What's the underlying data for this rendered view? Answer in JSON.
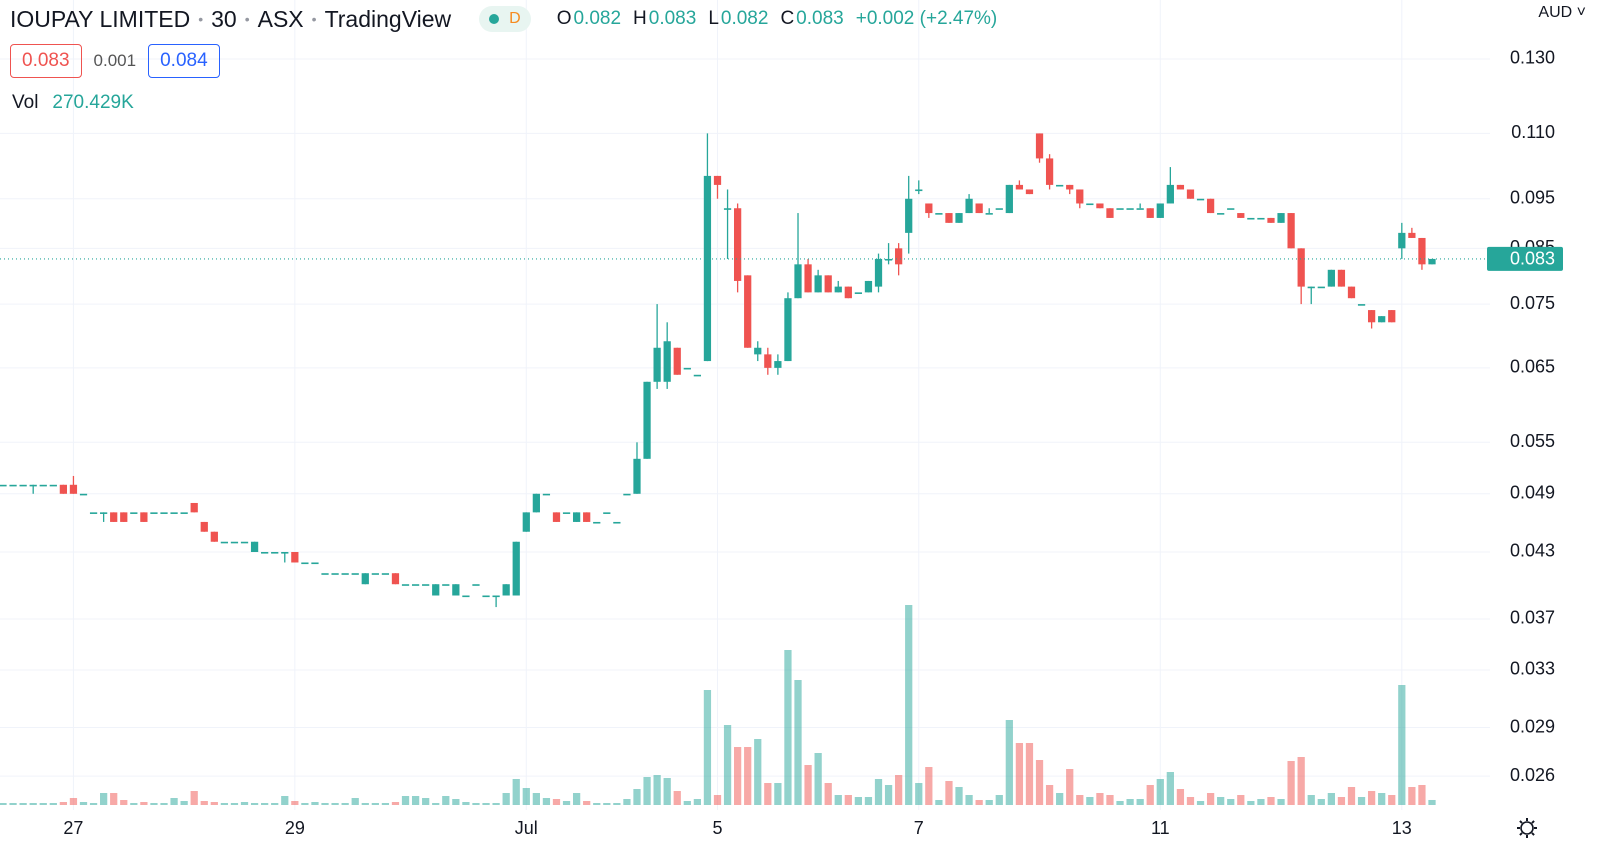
{
  "header": {
    "symbol": "IOUPAY LIMITED",
    "interval": "30",
    "exchange": "ASX",
    "source": "TradingView",
    "status": "D",
    "ohlc": [
      {
        "key": "O",
        "value": "0.082"
      },
      {
        "key": "H",
        "value": "0.083"
      },
      {
        "key": "L",
        "value": "0.082"
      },
      {
        "key": "C",
        "value": "0.083"
      }
    ],
    "change": "+0.002 (+2.47%)",
    "bid": "0.083",
    "spread": "0.001",
    "ask": "0.084",
    "volume_label": "Vol",
    "volume_value": "270.429K",
    "currency": "AUD"
  },
  "chart_data": {
    "type": "candlestick",
    "log_scale": true,
    "grid": true,
    "up_color": "#26a69a",
    "down_color": "#ef5350",
    "ylim": [
      0.0241,
      0.1484
    ],
    "yticks": [
      {
        "value": 0.13,
        "label": "0.130"
      },
      {
        "value": 0.11,
        "label": "0.110"
      },
      0.095,
      0.085,
      0.075,
      0.065,
      0.055,
      0.049,
      0.043,
      0.037,
      0.033,
      0.029,
      0.026
    ],
    "last_price": 0.083,
    "volume_lim": [
      0,
      16200000
    ],
    "categories": [
      null,
      null,
      null,
      null,
      null,
      null,
      null,
      "27",
      null,
      null,
      null,
      null,
      null,
      null,
      null,
      null,
      null,
      null,
      null,
      null,
      null,
      null,
      null,
      null,
      null,
      null,
      null,
      null,
      null,
      "29",
      null,
      null,
      null,
      null,
      null,
      null,
      null,
      null,
      null,
      null,
      null,
      null,
      null,
      null,
      null,
      null,
      null,
      null,
      null,
      null,
      null,
      null,
      "Jul",
      null,
      null,
      null,
      null,
      null,
      null,
      null,
      null,
      null,
      null,
      null,
      null,
      null,
      null,
      null,
      null,
      null,
      null,
      "5",
      null,
      null,
      null,
      null,
      null,
      null,
      null,
      null,
      null,
      null,
      null,
      null,
      null,
      null,
      null,
      null,
      null,
      null,
      null,
      "7",
      null,
      null,
      null,
      null,
      null,
      null,
      null,
      null,
      null,
      null,
      null,
      null,
      null,
      null,
      null,
      null,
      null,
      null,
      null,
      null,
      null,
      null,
      null,
      "11",
      null,
      null,
      null,
      null,
      null,
      null,
      null,
      null,
      null,
      null,
      null,
      null,
      null,
      null,
      null,
      null,
      null,
      null,
      null,
      null,
      null,
      null,
      null,
      "13",
      null,
      null,
      null
    ],
    "open": [
      0.05,
      0.05,
      0.05,
      0.05,
      0.05,
      0.05,
      0.05,
      0.05,
      0.049,
      0.047,
      0.047,
      0.047,
      0.047,
      0.047,
      0.047,
      0.047,
      0.047,
      0.047,
      0.047,
      0.048,
      0.046,
      0.045,
      0.044,
      0.044,
      0.044,
      0.043,
      0.043,
      0.043,
      0.043,
      0.043,
      0.042,
      0.042,
      0.041,
      0.041,
      0.041,
      0.041,
      0.04,
      0.041,
      0.041,
      0.041,
      0.04,
      0.04,
      0.04,
      0.039,
      0.04,
      0.039,
      0.039,
      0.04,
      0.039,
      0.039,
      0.039,
      0.039,
      0.045,
      0.047,
      0.049,
      0.047,
      0.047,
      0.046,
      0.047,
      0.046,
      0.047,
      0.046,
      0.049,
      0.049,
      0.053,
      0.063,
      0.063,
      0.068,
      0.065,
      0.064,
      0.066,
      0.1,
      0.093,
      0.093,
      0.08,
      0.067,
      0.067,
      0.065,
      0.066,
      0.076,
      0.082,
      0.077,
      0.08,
      0.077,
      0.078,
      0.077,
      0.077,
      0.078,
      0.083,
      0.085,
      0.088,
      0.097,
      0.094,
      0.092,
      0.092,
      0.09,
      0.092,
      0.094,
      0.092,
      0.093,
      0.092,
      0.098,
      0.097,
      0.11,
      0.104,
      0.098,
      0.098,
      0.097,
      0.094,
      0.094,
      0.093,
      0.093,
      0.093,
      0.093,
      0.093,
      0.091,
      0.094,
      0.098,
      0.097,
      0.095,
      0.095,
      0.092,
      0.093,
      0.092,
      0.091,
      0.091,
      0.091,
      0.09,
      0.092,
      0.085,
      0.078,
      0.078,
      0.078,
      0.081,
      0.078,
      0.075,
      0.074,
      0.072,
      0.074,
      0.085,
      0.088,
      0.087,
      0.082
    ],
    "high": [
      0.05,
      0.05,
      0.05,
      0.05,
      0.05,
      0.05,
      0.05,
      0.051,
      0.049,
      0.047,
      0.047,
      0.047,
      0.047,
      0.047,
      0.047,
      0.047,
      0.047,
      0.047,
      0.047,
      0.048,
      0.046,
      0.045,
      0.044,
      0.044,
      0.044,
      0.044,
      0.043,
      0.043,
      0.043,
      0.043,
      0.042,
      0.042,
      0.041,
      0.041,
      0.041,
      0.041,
      0.041,
      0.041,
      0.041,
      0.041,
      0.04,
      0.04,
      0.04,
      0.04,
      0.04,
      0.04,
      0.039,
      0.04,
      0.039,
      0.039,
      0.04,
      0.044,
      0.047,
      0.049,
      0.049,
      0.047,
      0.047,
      0.047,
      0.047,
      0.046,
      0.047,
      0.046,
      0.049,
      0.055,
      0.063,
      0.075,
      0.072,
      0.068,
      0.065,
      0.064,
      0.11,
      0.1,
      0.097,
      0.094,
      0.08,
      0.069,
      0.068,
      0.067,
      0.077,
      0.092,
      0.083,
      0.081,
      0.08,
      0.079,
      0.078,
      0.077,
      0.079,
      0.084,
      0.086,
      0.086,
      0.1,
      0.099,
      0.094,
      0.092,
      0.092,
      0.092,
      0.096,
      0.094,
      0.093,
      0.093,
      0.098,
      0.099,
      0.097,
      0.11,
      0.105,
      0.098,
      0.098,
      0.097,
      0.094,
      0.094,
      0.093,
      0.093,
      0.093,
      0.094,
      0.093,
      0.094,
      0.102,
      0.098,
      0.097,
      0.095,
      0.095,
      0.092,
      0.093,
      0.092,
      0.091,
      0.091,
      0.091,
      0.092,
      0.092,
      0.085,
      0.078,
      0.078,
      0.081,
      0.081,
      0.078,
      0.075,
      0.074,
      0.073,
      0.074,
      0.09,
      0.089,
      0.087,
      0.083
    ],
    "low": [
      0.05,
      0.05,
      0.05,
      0.049,
      0.05,
      0.05,
      0.049,
      0.049,
      0.049,
      0.047,
      0.046,
      0.046,
      0.046,
      0.047,
      0.046,
      0.047,
      0.047,
      0.047,
      0.047,
      0.047,
      0.045,
      0.044,
      0.044,
      0.044,
      0.044,
      0.043,
      0.043,
      0.043,
      0.042,
      0.042,
      0.042,
      0.042,
      0.041,
      0.041,
      0.041,
      0.041,
      0.04,
      0.041,
      0.041,
      0.04,
      0.04,
      0.04,
      0.04,
      0.039,
      0.04,
      0.039,
      0.039,
      0.04,
      0.039,
      0.038,
      0.039,
      0.039,
      0.045,
      0.047,
      0.049,
      0.046,
      0.047,
      0.046,
      0.046,
      0.046,
      0.047,
      0.046,
      0.049,
      0.049,
      0.053,
      0.062,
      0.062,
      0.064,
      0.065,
      0.064,
      0.066,
      0.095,
      0.083,
      0.077,
      0.068,
      0.066,
      0.064,
      0.064,
      0.066,
      0.076,
      0.077,
      0.077,
      0.077,
      0.077,
      0.076,
      0.077,
      0.077,
      0.077,
      0.082,
      0.08,
      0.084,
      0.096,
      0.091,
      0.092,
      0.09,
      0.09,
      0.092,
      0.092,
      0.092,
      0.093,
      0.092,
      0.097,
      0.096,
      0.103,
      0.097,
      0.098,
      0.096,
      0.093,
      0.094,
      0.093,
      0.091,
      0.093,
      0.093,
      0.093,
      0.091,
      0.091,
      0.094,
      0.097,
      0.095,
      0.095,
      0.092,
      0.092,
      0.093,
      0.091,
      0.091,
      0.091,
      0.09,
      0.09,
      0.085,
      0.075,
      0.075,
      0.078,
      0.078,
      0.078,
      0.076,
      0.075,
      0.071,
      0.072,
      0.072,
      0.083,
      0.087,
      0.081,
      0.082
    ],
    "close": [
      0.05,
      0.05,
      0.05,
      0.05,
      0.05,
      0.05,
      0.049,
      0.049,
      0.049,
      0.047,
      0.047,
      0.046,
      0.046,
      0.047,
      0.046,
      0.047,
      0.047,
      0.047,
      0.047,
      0.047,
      0.045,
      0.044,
      0.044,
      0.044,
      0.044,
      0.044,
      0.043,
      0.043,
      0.043,
      0.042,
      0.042,
      0.042,
      0.041,
      0.041,
      0.041,
      0.041,
      0.041,
      0.041,
      0.041,
      0.04,
      0.04,
      0.04,
      0.04,
      0.04,
      0.04,
      0.04,
      0.039,
      0.04,
      0.039,
      0.039,
      0.04,
      0.044,
      0.047,
      0.049,
      0.049,
      0.046,
      0.047,
      0.047,
      0.046,
      0.046,
      0.047,
      0.046,
      0.049,
      0.053,
      0.063,
      0.068,
      0.069,
      0.064,
      0.065,
      0.064,
      0.1,
      0.098,
      0.093,
      0.079,
      0.068,
      0.068,
      0.065,
      0.066,
      0.076,
      0.082,
      0.077,
      0.08,
      0.077,
      0.078,
      0.076,
      0.077,
      0.079,
      0.083,
      0.083,
      0.082,
      0.095,
      0.097,
      0.092,
      0.092,
      0.09,
      0.092,
      0.095,
      0.092,
      0.092,
      0.093,
      0.098,
      0.097,
      0.096,
      0.104,
      0.098,
      0.098,
      0.097,
      0.094,
      0.094,
      0.093,
      0.091,
      0.093,
      0.093,
      0.093,
      0.091,
      0.094,
      0.098,
      0.097,
      0.095,
      0.095,
      0.092,
      0.092,
      0.093,
      0.091,
      0.091,
      0.091,
      0.09,
      0.092,
      0.085,
      0.078,
      0.078,
      0.078,
      0.081,
      0.078,
      0.076,
      0.075,
      0.072,
      0.073,
      0.072,
      0.088,
      0.087,
      0.082,
      0.083
    ],
    "volume": [
      108000,
      108000,
      108000,
      108000,
      108000,
      108000,
      162000,
      378000,
      162000,
      108000,
      648000,
      648000,
      270000,
      108000,
      162000,
      108000,
      108000,
      378000,
      216000,
      756000,
      216000,
      162000,
      108000,
      108000,
      162000,
      108000,
      108000,
      108000,
      486000,
      216000,
      108000,
      162000,
      108000,
      108000,
      108000,
      378000,
      108000,
      108000,
      108000,
      162000,
      486000,
      486000,
      378000,
      108000,
      486000,
      324000,
      162000,
      108000,
      108000,
      108000,
      648000,
      1404000,
      918000,
      648000,
      378000,
      324000,
      216000,
      648000,
      216000,
      108000,
      108000,
      108000,
      324000,
      864000,
      1512000,
      1620000,
      1458000,
      756000,
      216000,
      324000,
      6210000,
      540000,
      4320000,
      3132000,
      3132000,
      3564000,
      1188000,
      1188000,
      8370000,
      6750000,
      2160000,
      2808000,
      1188000,
      540000,
      540000,
      432000,
      432000,
      1404000,
      1080000,
      1620000,
      10800000,
      1188000,
      2052000,
      270000,
      1296000,
      972000,
      540000,
      270000,
      270000,
      540000,
      4590000,
      3348000,
      3348000,
      2430000,
      1080000,
      648000,
      1944000,
      540000,
      432000,
      648000,
      540000,
      216000,
      324000,
      324000,
      1080000,
      1404000,
      1782000,
      864000,
      432000,
      216000,
      648000,
      432000,
      324000,
      540000,
      216000,
      324000,
      432000,
      324000,
      2376000,
      2592000,
      540000,
      324000,
      648000,
      432000,
      972000,
      432000,
      756000,
      648000,
      540000,
      6480000,
      972000,
      1080000,
      270429
    ]
  }
}
